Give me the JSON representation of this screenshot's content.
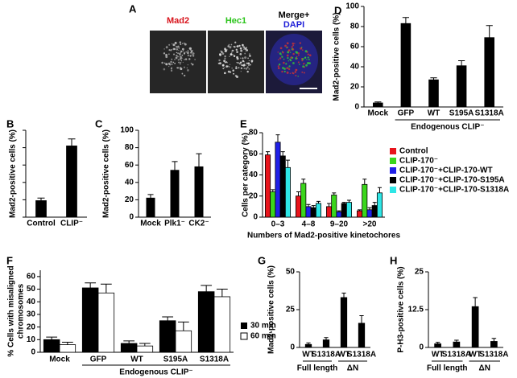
{
  "panel_a": {
    "letter": "A",
    "labels": [
      "Mad2",
      "Hec1",
      "Merge+",
      "DAPI"
    ]
  },
  "chart_data": [
    {
      "panel": "B",
      "type": "bar",
      "y_label": "Mad2-positive cells (%)",
      "categories": [
        "Control",
        "CLIP⁻"
      ],
      "values": [
        19,
        82
      ],
      "errors": [
        3,
        8
      ],
      "color": "#000000",
      "ylim": [
        0,
        100
      ],
      "yticks": [
        0,
        20,
        40,
        60,
        80,
        100
      ],
      "tick_labels": false
    },
    {
      "panel": "C",
      "type": "bar",
      "y_label": "Mad2-positive cells (%)",
      "categories": [
        "Mock",
        "Plk1⁻",
        "CK2⁻"
      ],
      "values": [
        22,
        54,
        58
      ],
      "errors": [
        4,
        10,
        15
      ],
      "color": "#000000",
      "ylim": [
        0,
        100
      ],
      "yticks": [
        0,
        20,
        40,
        60,
        80,
        100
      ]
    },
    {
      "panel": "D",
      "type": "bar",
      "y_label": "Mad2-positive cells (%)",
      "categories": [
        "Mock",
        "GFP",
        "WT",
        "S195A",
        "S1318A"
      ],
      "values": [
        4,
        83,
        27,
        41,
        69
      ],
      "errors": [
        1,
        6,
        2,
        5,
        12
      ],
      "color": "#000000",
      "ylim": [
        0,
        100
      ],
      "yticks": [
        0,
        20,
        40,
        60,
        80,
        100
      ],
      "groups": [
        {
          "label": "Endogenous CLIP⁻",
          "span": [
            1,
            4
          ]
        }
      ]
    },
    {
      "panel": "E",
      "type": "bar",
      "y_label": "Cells per category (%)",
      "x_label": "Numbers of Mad2-positive kinetochores",
      "categories": [
        "0–3",
        "4–8",
        "9–20",
        ">20"
      ],
      "ylim": [
        0,
        80
      ],
      "yticks": [
        0,
        20,
        40,
        60,
        80
      ],
      "legend": "right",
      "series": [
        {
          "name": "Control",
          "color": "#e8141c",
          "values": [
            59,
            20,
            10,
            6
          ],
          "errors": [
            3,
            4,
            3,
            1
          ]
        },
        {
          "name": "CLIP-170⁻",
          "color": "#3bd61c",
          "values": [
            24,
            32,
            21,
            31
          ],
          "errors": [
            2,
            4,
            2,
            5
          ]
        },
        {
          "name": "CLIP-170⁻+CLIP-170-WT",
          "color": "#2020e8",
          "values": [
            71,
            10,
            5,
            7
          ],
          "errors": [
            7,
            2,
            1,
            2
          ]
        },
        {
          "name": "CLIP-170⁻+CLIP-170-S195A",
          "color": "#000000",
          "values": [
            58,
            9,
            13,
            11
          ],
          "errors": [
            4,
            2,
            1,
            3
          ]
        },
        {
          "name": "CLIP-170⁻+CLIP-170-S1318A",
          "color": "#2ee6e6",
          "values": [
            47,
            13,
            14,
            23
          ],
          "errors": [
            7,
            2,
            2,
            5
          ]
        }
      ]
    },
    {
      "panel": "F",
      "type": "bar",
      "y_label": [
        "% Cells with misaligned",
        "chromosomes"
      ],
      "categories": [
        "Mock",
        "GFP",
        "WT",
        "S195A",
        "S1318A"
      ],
      "ylim": [
        0,
        65
      ],
      "yticks": [
        0,
        10,
        20,
        30,
        40,
        50,
        60
      ],
      "legend": "right",
      "groups": [
        {
          "label": "Endogenous CLIP⁻",
          "span": [
            1,
            4
          ]
        }
      ],
      "series": [
        {
          "name": "30 min",
          "color": "#000000",
          "values": [
            10,
            51,
            7,
            25,
            48
          ],
          "errors": [
            2,
            4,
            2,
            3,
            5
          ]
        },
        {
          "name": "60 min",
          "color": "#ffffff",
          "values": [
            6,
            47,
            5,
            17,
            44
          ],
          "errors": [
            2,
            7,
            2,
            7,
            6
          ]
        }
      ]
    },
    {
      "panel": "G",
      "type": "bar",
      "y_label": "Mad2-positive cells (%)",
      "categories": [
        "WT",
        "S1318A",
        "WT",
        "S1318A"
      ],
      "values": [
        2,
        5,
        33,
        16
      ],
      "errors": [
        1,
        1.5,
        3,
        5
      ],
      "color": "#000000",
      "ylim": [
        0,
        50
      ],
      "yticks": [
        0,
        25,
        50
      ],
      "groups": [
        {
          "label": "Full length",
          "span": [
            0,
            1
          ]
        },
        {
          "label": "ΔN",
          "span": [
            2,
            3
          ]
        }
      ]
    },
    {
      "panel": "H",
      "type": "bar",
      "y_label": "P-H3-positive cells (%)",
      "categories": [
        "WT",
        "S1318A",
        "WT",
        "S1318A"
      ],
      "values": [
        1.2,
        1.8,
        13.5,
        2
      ],
      "errors": [
        0.5,
        0.6,
        3,
        1
      ],
      "color": "#000000",
      "ylim": [
        0,
        25
      ],
      "yticks": [
        0,
        12.5,
        25
      ],
      "groups": [
        {
          "label": "Full length",
          "span": [
            0,
            1
          ]
        },
        {
          "label": "ΔN",
          "span": [
            2,
            3
          ]
        }
      ]
    }
  ]
}
